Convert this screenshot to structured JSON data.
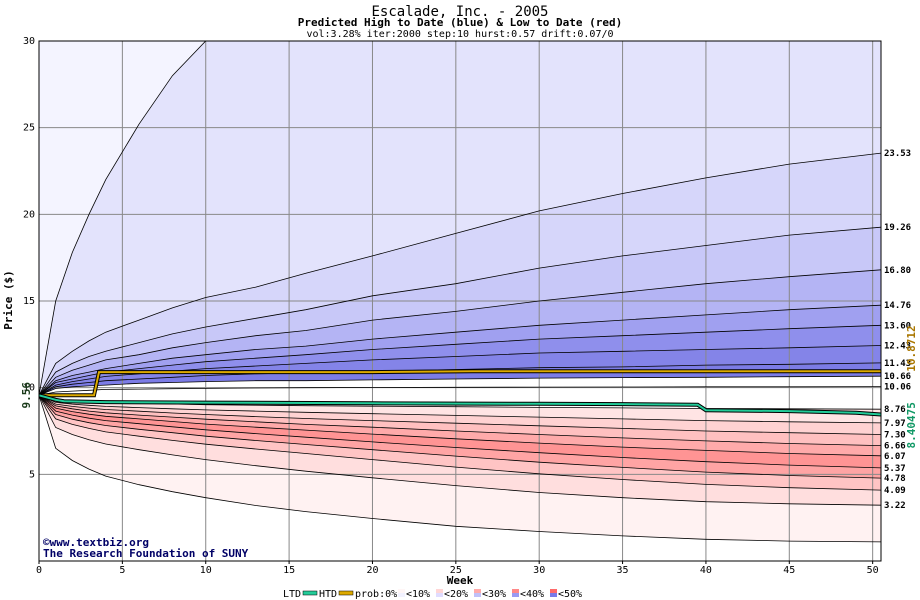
{
  "chart_data": {
    "type": "area",
    "title": "Escalade, Inc. - 2005",
    "subtitle": "Predicted High to Date (blue) &  Low to Date (red)",
    "params": "vol:3.28% iter:2000 step:10 hurst:0.57 drift:0.07/0",
    "xlabel": "Week",
    "ylabel": "Price ($)",
    "xlim": [
      0,
      50.5
    ],
    "ylim": [
      0,
      30
    ],
    "x_ticks": [
      0,
      5,
      10,
      15,
      20,
      25,
      30,
      35,
      40,
      45,
      50
    ],
    "y_ticks": [
      5,
      10,
      15,
      20,
      25,
      30
    ],
    "grid": true,
    "start_price": 9.56,
    "start_label": "9.56",
    "x": [
      0,
      1,
      2,
      3,
      4,
      6,
      8,
      10,
      13,
      16,
      20,
      25,
      30,
      35,
      40,
      45,
      50.5
    ],
    "high_bands": [
      {
        "label": "",
        "values": [
          9.56,
          15.0,
          17.8,
          20.0,
          22.0,
          25.2,
          28.0,
          30.0,
          30.0,
          30.0,
          30.0,
          30.0,
          30.0,
          30.0,
          30.0,
          30.0,
          30.0
        ]
      },
      {
        "label": "23.53",
        "values": [
          9.56,
          11.4,
          12.1,
          12.7,
          13.2,
          13.9,
          14.6,
          15.2,
          15.8,
          16.6,
          17.6,
          18.9,
          20.2,
          21.2,
          22.1,
          22.9,
          23.53
        ]
      },
      {
        "label": "19.26",
        "values": [
          9.56,
          10.9,
          11.4,
          11.8,
          12.1,
          12.6,
          13.1,
          13.5,
          14.0,
          14.5,
          15.3,
          16.0,
          16.9,
          17.6,
          18.2,
          18.8,
          19.26
        ]
      },
      {
        "label": "16.80",
        "values": [
          9.56,
          10.6,
          11.0,
          11.3,
          11.6,
          11.9,
          12.3,
          12.6,
          13.0,
          13.3,
          13.9,
          14.4,
          15.0,
          15.5,
          16.0,
          16.4,
          16.8
        ]
      },
      {
        "label": "14.76",
        "values": [
          9.56,
          10.4,
          10.7,
          10.9,
          11.1,
          11.4,
          11.7,
          11.9,
          12.2,
          12.4,
          12.8,
          13.2,
          13.6,
          13.9,
          14.2,
          14.5,
          14.76
        ]
      },
      {
        "label": "13.60",
        "values": [
          9.56,
          10.3,
          10.5,
          10.7,
          10.9,
          11.1,
          11.3,
          11.5,
          11.7,
          11.9,
          12.2,
          12.5,
          12.8,
          13.0,
          13.2,
          13.4,
          13.6
        ]
      },
      {
        "label": "12.43",
        "values": [
          9.56,
          10.15,
          10.35,
          10.5,
          10.65,
          10.8,
          10.95,
          11.1,
          11.25,
          11.4,
          11.6,
          11.8,
          12.0,
          12.1,
          12.2,
          12.3,
          12.43
        ]
      },
      {
        "label": "11.43",
        "values": [
          9.56,
          10.05,
          10.2,
          10.3,
          10.4,
          10.5,
          10.6,
          10.7,
          10.8,
          10.85,
          10.95,
          11.05,
          11.15,
          11.2,
          11.3,
          11.35,
          11.43
        ]
      },
      {
        "label": "10.66",
        "values": [
          9.56,
          9.95,
          10.05,
          10.1,
          10.15,
          10.25,
          10.3,
          10.35,
          10.4,
          10.4,
          10.45,
          10.5,
          10.55,
          10.58,
          10.6,
          10.63,
          10.66
        ]
      },
      {
        "label": "10.06",
        "values": [
          9.56,
          9.75,
          9.8,
          9.85,
          9.9,
          9.92,
          9.94,
          9.96,
          9.98,
          10.0,
          10.01,
          10.02,
          10.03,
          10.04,
          10.05,
          10.05,
          10.06
        ]
      }
    ],
    "low_bands": [
      {
        "label": "8.76",
        "values": [
          9.56,
          9.3,
          9.22,
          9.18,
          9.14,
          9.1,
          9.06,
          9.02,
          8.99,
          8.96,
          8.93,
          8.9,
          8.86,
          8.83,
          8.8,
          8.78,
          8.76
        ]
      },
      {
        "label": "7.97",
        "values": [
          9.56,
          9.15,
          9.05,
          8.98,
          8.92,
          8.85,
          8.78,
          8.72,
          8.65,
          8.58,
          8.5,
          8.4,
          8.3,
          8.2,
          8.1,
          8.03,
          7.97
        ]
      },
      {
        "label": "7.30",
        "values": [
          9.56,
          9.05,
          8.92,
          8.82,
          8.74,
          8.64,
          8.54,
          8.45,
          8.33,
          8.22,
          8.1,
          7.95,
          7.8,
          7.65,
          7.5,
          7.4,
          7.3
        ]
      },
      {
        "label": "6.66",
        "values": [
          9.56,
          8.95,
          8.78,
          8.65,
          8.55,
          8.42,
          8.3,
          8.18,
          8.03,
          7.88,
          7.72,
          7.5,
          7.3,
          7.1,
          6.93,
          6.78,
          6.66
        ]
      },
      {
        "label": "6.07",
        "values": [
          9.56,
          8.82,
          8.62,
          8.47,
          8.35,
          8.2,
          8.05,
          7.9,
          7.72,
          7.55,
          7.32,
          7.05,
          6.8,
          6.57,
          6.38,
          6.2,
          6.07
        ]
      },
      {
        "label": "5.37",
        "values": [
          9.56,
          8.65,
          8.42,
          8.24,
          8.1,
          7.92,
          7.74,
          7.57,
          7.35,
          7.14,
          6.87,
          6.55,
          6.25,
          5.97,
          5.73,
          5.53,
          5.37
        ]
      },
      {
        "label": "4.78",
        "values": [
          9.56,
          8.45,
          8.18,
          7.98,
          7.82,
          7.6,
          7.4,
          7.2,
          6.95,
          6.72,
          6.42,
          6.05,
          5.7,
          5.4,
          5.13,
          4.93,
          4.78
        ]
      },
      {
        "label": "4.09",
        "values": [
          9.56,
          8.2,
          7.88,
          7.65,
          7.45,
          7.2,
          6.96,
          6.74,
          6.46,
          6.2,
          5.85,
          5.42,
          5.03,
          4.7,
          4.42,
          4.23,
          4.09
        ]
      },
      {
        "label": "3.22",
        "values": [
          9.56,
          7.7,
          7.3,
          7.0,
          6.75,
          6.42,
          6.12,
          5.85,
          5.5,
          5.18,
          4.8,
          4.35,
          3.95,
          3.65,
          3.42,
          3.3,
          3.22
        ]
      },
      {
        "label": "",
        "values": [
          9.56,
          6.5,
          5.8,
          5.3,
          4.9,
          4.4,
          4.0,
          3.65,
          3.2,
          2.85,
          2.45,
          2.0,
          1.7,
          1.45,
          1.25,
          1.15,
          1.1
        ]
      }
    ],
    "htd_line": {
      "x": [
        0,
        3.3,
        3.6,
        10,
        20,
        26,
        30,
        35,
        40,
        45,
        50.5
      ],
      "values": [
        9.56,
        9.56,
        10.9,
        10.9,
        10.9,
        10.95,
        10.95,
        10.95,
        10.95,
        10.95,
        10.95
      ]
    },
    "ltd_line": {
      "x": [
        0,
        1,
        1.5,
        4,
        10,
        20,
        30,
        35,
        39.5,
        40,
        45,
        49,
        50.5
      ],
      "values": [
        9.56,
        9.3,
        9.22,
        9.17,
        9.14,
        9.1,
        9.07,
        9.05,
        9.02,
        8.7,
        8.65,
        8.55,
        8.45
      ]
    },
    "right_labels": [
      {
        "text": "10.8712",
        "value": 10.8712
      },
      {
        "text": "8.40475",
        "value": 8.40475
      }
    ],
    "legend": {
      "ltd": "LTD",
      "htd": "HTD",
      "prob": "prob:0%",
      "bins": [
        "<10%",
        "<20%",
        "<30%",
        "<40%",
        "<50%"
      ]
    },
    "watermark": {
      "line1": "www.textbiz.org",
      "line2": "The Research Foundation of SUNY"
    },
    "colors": {
      "ltd": "#22cc99",
      "htd": "#ddaa00",
      "start_label": "#1a3a1a",
      "right_label_high": "#aa7700",
      "right_label_low": "#119966",
      "watermark": "#000066",
      "high_band_fills": [
        "#f4f4ff",
        "#e3e3fc",
        "#d6d6fa",
        "#c8c8f8",
        "#b4b4f4",
        "#a0a0f0",
        "#8f8fec",
        "#8484e8",
        "#7c7ce6",
        "#ffffff"
      ],
      "low_band_fills": [
        "#ffffff",
        "#ffe4e4",
        "#ffd2d2",
        "#ffc0c0",
        "#ffaaaa",
        "#ff9494",
        "#ffa4a4",
        "#ffc4c4",
        "#ffdede",
        "#fff2f2"
      ],
      "legend_swatches": [
        "#fff6f6",
        "#f2f2ff",
        "#ffd6d6",
        "#e0dcff",
        "#ffaaaa",
        "#c0c0f8",
        "#ff8888",
        "#9a9af2",
        "#ff6a6a",
        "#7a7ae8"
      ]
    }
  }
}
